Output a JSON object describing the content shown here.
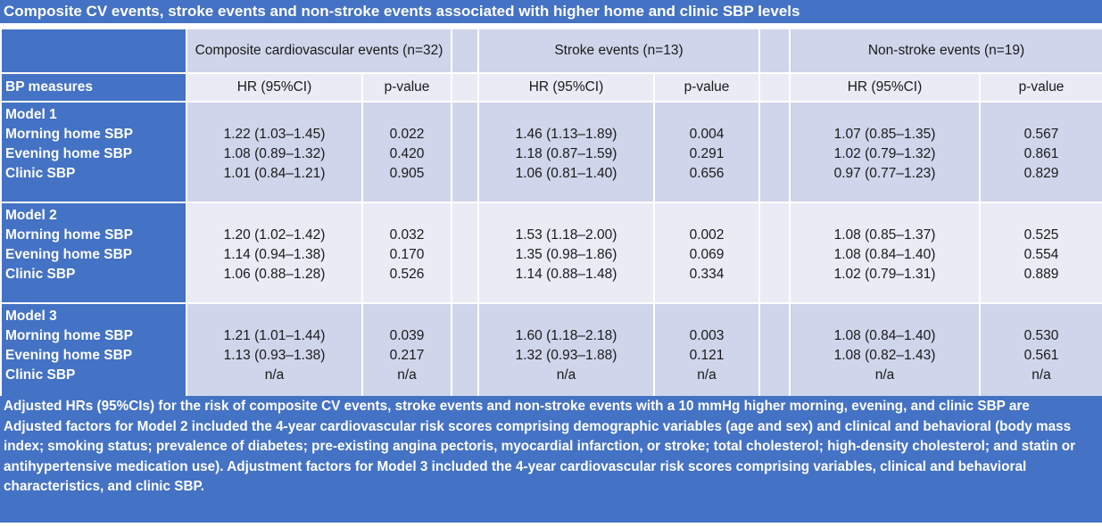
{
  "title": "Composite CV events, stroke events and non-stroke  events associated with higher home and clinic SBP levels",
  "headers": {
    "composite": "Composite cardiovascular events (n=32)",
    "stroke": "Stroke events (n=13)",
    "nonstroke": "Non-stroke events (n=19)"
  },
  "subheaders": {
    "bp_measures": "BP measures",
    "hr": "HR (95%CI)",
    "p": "p-value"
  },
  "models": [
    {
      "name": "Model 1",
      "rows": [
        {
          "label": "Morning home SBP",
          "c_hr": "1.22 (1.03–1.45)",
          "c_p": "0.022",
          "s_hr": "1.46 (1.13–1.89)",
          "s_p": "0.004",
          "n_hr": "1.07 (0.85–1.35)",
          "n_p": "0.567"
        },
        {
          "label": "Evening home SBP",
          "c_hr": "1.08 (0.89–1.32)",
          "c_p": "0.420",
          "s_hr": "1.18 (0.87–1.59)",
          "s_p": "0.291",
          "n_hr": "1.02 (0.79–1.32)",
          "n_p": "0.861"
        },
        {
          "label": "Clinic SBP",
          "c_hr": "1.01 (0.84–1.21)",
          "c_p": "0.905",
          "s_hr": "1.06 (0.81–1.40)",
          "s_p": "0.656",
          "n_hr": "0.97 (0.77–1.23)",
          "n_p": "0.829"
        }
      ]
    },
    {
      "name": "Model 2",
      "rows": [
        {
          "label": "Morning home SBP",
          "c_hr": "1.20 (1.02–1.42)",
          "c_p": "0.032",
          "s_hr": "1.53 (1.18–2.00)",
          "s_p": "0.002",
          "n_hr": "1.08 (0.85–1.37)",
          "n_p": "0.525"
        },
        {
          "label": "Evening home SBP",
          "c_hr": "1.14 (0.94–1.38)",
          "c_p": "0.170",
          "s_hr": "1.35 (0.98–1.86)",
          "s_p": "0.069",
          "n_hr": "1.08 (0.84–1.40)",
          "n_p": "0.554"
        },
        {
          "label": "Clinic SBP",
          "c_hr": "1.06 (0.88–1.28)",
          "c_p": "0.526",
          "s_hr": "1.14 (0.88–1.48)",
          "s_p": "0.334",
          "n_hr": "1.02 (0.79–1.31)",
          "n_p": "0.889"
        }
      ]
    },
    {
      "name": "Model 3",
      "rows": [
        {
          "label": "Morning home SBP",
          "c_hr": "1.21 (1.01–1.44)",
          "c_p": "0.039",
          "s_hr": "1.60 (1.18–2.18)",
          "s_p": "0.003",
          "n_hr": "1.08 (0.84–1.40)",
          "n_p": "0.530"
        },
        {
          "label": "Evening home SBP",
          "c_hr": "1.13 (0.93–1.38)",
          "c_p": "0.217",
          "s_hr": "1.32 (0.93–1.88)",
          "s_p": "0.121",
          "n_hr": "1.08 (0.82–1.43)",
          "n_p": "0.561"
        },
        {
          "label": "Clinic SBP",
          "c_hr": "n/a",
          "c_p": "n/a",
          "s_hr": "n/a",
          "s_p": "n/a",
          "n_hr": "n/a",
          "n_p": "n/a"
        }
      ]
    }
  ],
  "footer": {
    "line1": "Adjusted HRs (95%CIs) for the risk of composite CV events, stroke events and non-stroke events with a 10 mmHg higher morning, evening, and clinic SBP are",
    "line2": "Adjusted factors for Model 2 included the 4-year cardiovascular risk scores comprising demographic variables (age and sex) and clinical and behavioral (body mass index; smoking status; prevalence of diabetes; pre-existing angina pectoris, myocardial infarction, or stroke; total cholesterol; high-density cholesterol; and statin or antihypertensive medication use). Adjustment factors for Model 3 included the 4-year cardiovascular risk scores comprising variables, clinical and behavioral characteristics, and clinic SBP."
  },
  "colors": {
    "header_blue": "#4472c4",
    "cell_light": "#cfd5ea",
    "cell_lighter": "#e9ebf5"
  }
}
